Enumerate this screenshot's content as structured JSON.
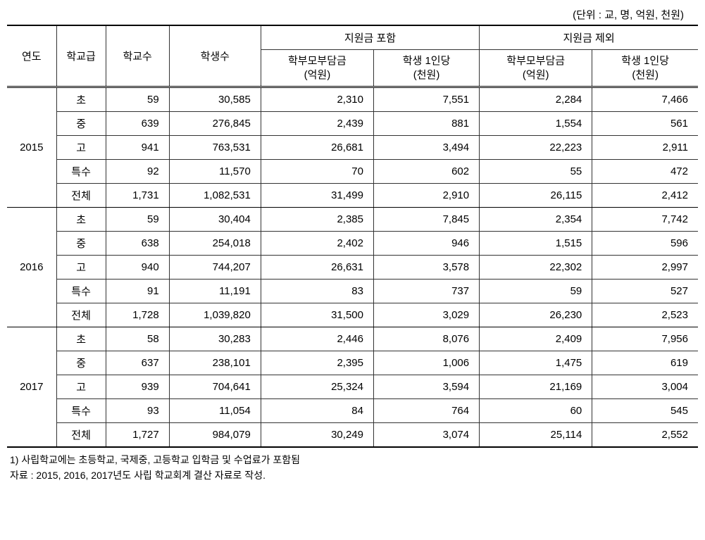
{
  "unit_label": "(단위 : 교, 명, 억원, 천원)",
  "headers": {
    "year": "연도",
    "school_level": "학교급",
    "school_count": "학교수",
    "student_count": "학생수",
    "include_support": "지원금 포함",
    "exclude_support": "지원금 제외",
    "parent_burden_line1": "학부모부담금",
    "parent_burden_line2": "(억원)",
    "per_student_line1": "학생 1인당",
    "per_student_line2": "(천원)"
  },
  "years": [
    {
      "year": "2015",
      "rows": [
        {
          "level": "초",
          "schools": "59",
          "students": "30,585",
          "inc_burden": "2,310",
          "inc_per": "7,551",
          "exc_burden": "2,284",
          "exc_per": "7,466"
        },
        {
          "level": "중",
          "schools": "639",
          "students": "276,845",
          "inc_burden": "2,439",
          "inc_per": "881",
          "exc_burden": "1,554",
          "exc_per": "561"
        },
        {
          "level": "고",
          "schools": "941",
          "students": "763,531",
          "inc_burden": "26,681",
          "inc_per": "3,494",
          "exc_burden": "22,223",
          "exc_per": "2,911"
        },
        {
          "level": "특수",
          "schools": "92",
          "students": "11,570",
          "inc_burden": "70",
          "inc_per": "602",
          "exc_burden": "55",
          "exc_per": "472"
        },
        {
          "level": "전체",
          "schools": "1,731",
          "students": "1,082,531",
          "inc_burden": "31,499",
          "inc_per": "2,910",
          "exc_burden": "26,115",
          "exc_per": "2,412"
        }
      ]
    },
    {
      "year": "2016",
      "rows": [
        {
          "level": "초",
          "schools": "59",
          "students": "30,404",
          "inc_burden": "2,385",
          "inc_per": "7,845",
          "exc_burden": "2,354",
          "exc_per": "7,742"
        },
        {
          "level": "중",
          "schools": "638",
          "students": "254,018",
          "inc_burden": "2,402",
          "inc_per": "946",
          "exc_burden": "1,515",
          "exc_per": "596"
        },
        {
          "level": "고",
          "schools": "940",
          "students": "744,207",
          "inc_burden": "26,631",
          "inc_per": "3,578",
          "exc_burden": "22,302",
          "exc_per": "2,997"
        },
        {
          "level": "특수",
          "schools": "91",
          "students": "11,191",
          "inc_burden": "83",
          "inc_per": "737",
          "exc_burden": "59",
          "exc_per": "527"
        },
        {
          "level": "전체",
          "schools": "1,728",
          "students": "1,039,820",
          "inc_burden": "31,500",
          "inc_per": "3,029",
          "exc_burden": "26,230",
          "exc_per": "2,523"
        }
      ]
    },
    {
      "year": "2017",
      "rows": [
        {
          "level": "초",
          "schools": "58",
          "students": "30,283",
          "inc_burden": "2,446",
          "inc_per": "8,076",
          "exc_burden": "2,409",
          "exc_per": "7,956"
        },
        {
          "level": "중",
          "schools": "637",
          "students": "238,101",
          "inc_burden": "2,395",
          "inc_per": "1,006",
          "exc_burden": "1,475",
          "exc_per": "619"
        },
        {
          "level": "고",
          "schools": "939",
          "students": "704,641",
          "inc_burden": "25,324",
          "inc_per": "3,594",
          "exc_burden": "21,169",
          "exc_per": "3,004"
        },
        {
          "level": "특수",
          "schools": "93",
          "students": "11,054",
          "inc_burden": "84",
          "inc_per": "764",
          "exc_burden": "60",
          "exc_per": "545"
        },
        {
          "level": "전체",
          "schools": "1,727",
          "students": "984,079",
          "inc_burden": "30,249",
          "inc_per": "3,074",
          "exc_burden": "25,114",
          "exc_per": "2,552"
        }
      ]
    }
  ],
  "footnotes": {
    "note1": "1) 사립학교에는 초등학교, 국제중, 고등학교 입학금 및 수업료가 포함됨",
    "source": "자료 : 2015, 2016, 2017년도 사립 학교회계 결산 자료로 작성."
  },
  "col_widths": {
    "year": "70",
    "level": "70",
    "schools": "90",
    "students": "130",
    "inc_burden": "160",
    "inc_per": "150",
    "exc_burden": "160",
    "exc_per": "150"
  }
}
